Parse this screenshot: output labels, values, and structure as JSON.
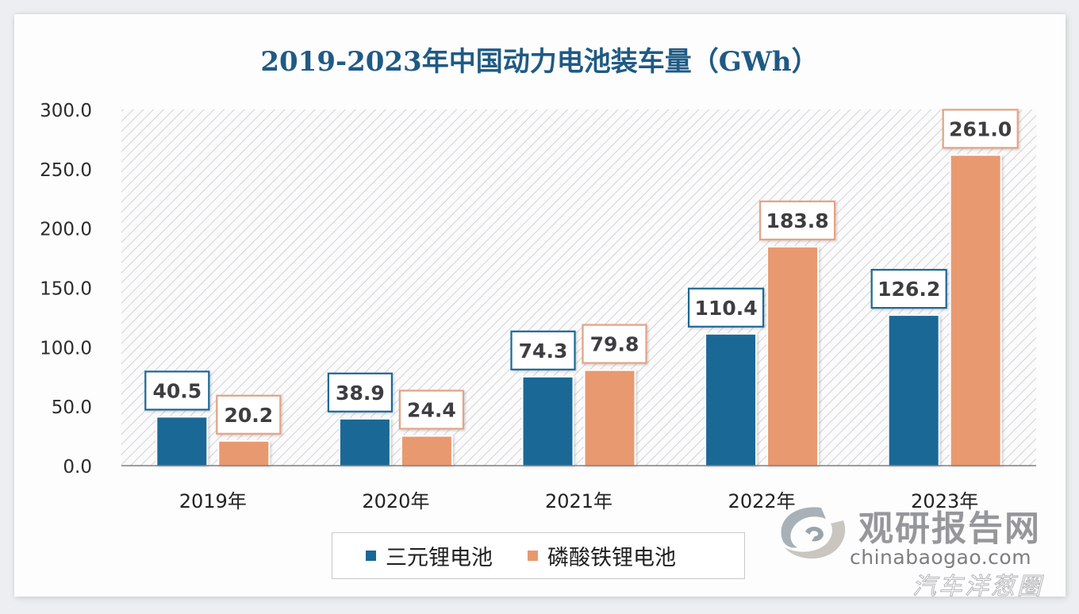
{
  "chart_data": {
    "type": "bar",
    "title": "2019-2023年中国动力电池装车量（GWh）",
    "xlabel": "",
    "ylabel": "",
    "categories": [
      "2019年",
      "2020年",
      "2021年",
      "2022年",
      "2023年"
    ],
    "series": [
      {
        "name": "三元锂电池",
        "color": "#1a6896",
        "values": [
          40.5,
          38.9,
          74.3,
          110.4,
          126.2
        ],
        "labels": [
          "40.5",
          "38.9",
          "74.3",
          "110.4",
          "126.2"
        ]
      },
      {
        "name": "磷酸铁锂电池",
        "color": "#e8996f",
        "values": [
          20.2,
          24.4,
          79.8,
          183.8,
          261.0
        ],
        "labels": [
          "20.2",
          "24.4",
          "79.8",
          "183.8",
          "261.0"
        ]
      }
    ],
    "ylim": [
      0,
      300
    ],
    "yticks": [
      "0.0",
      "50.0",
      "100.0",
      "150.0",
      "200.0",
      "250.0",
      "300.0"
    ],
    "ytick_values": [
      0,
      50,
      100,
      150,
      200,
      250,
      300
    ],
    "grid": false,
    "background": "diagonal-hatch",
    "data_labels": true,
    "legend_position": "bottom"
  },
  "legend": {
    "items": [
      {
        "label": "三元锂电池",
        "color": "#1a6896"
      },
      {
        "label": "磷酸铁锂电池",
        "color": "#e8996f"
      }
    ]
  },
  "watermark": {
    "brand_cn": "观研报告网",
    "url": "chinabaogao.com",
    "source_tag": "汽车洋葱圈",
    "logo_icon": "swirl-logo-icon"
  },
  "colors": {
    "title": "#1f5a84",
    "series_blue": "#1a6896",
    "series_orange": "#e8996f"
  }
}
